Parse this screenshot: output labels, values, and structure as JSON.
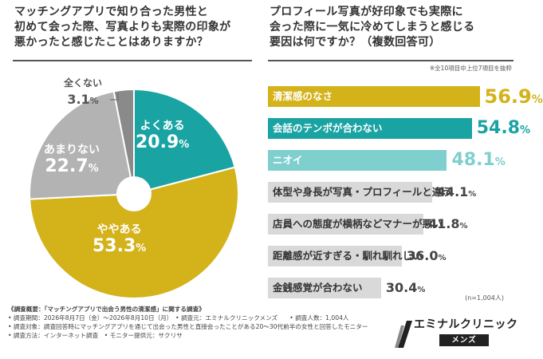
{
  "left": {
    "question_lines": [
      "マッチングアプリで知り合った男性と",
      "初めて会った際、写真よりも実際の印象が",
      "悪かったと感じたことはありますか？"
    ]
  },
  "right": {
    "question_lines": [
      "プロフィール写真が好印象でも実際に",
      "会った際に一気に冷めてしまうと感じる",
      "要因は何ですか？"
    ],
    "multi_answer": "（複数回答可）",
    "note": "※全10項目中上位7項目を抜粋",
    "n_label": "(n=1,004人)"
  },
  "chart_data": [
    {
      "type": "pie",
      "title": "",
      "unit": "%",
      "slices": [
        {
          "label": "よくある",
          "value": 20.9,
          "color": "#1aa3a3"
        },
        {
          "label": "ややある",
          "value": 53.3,
          "color": "#d4b21a"
        },
        {
          "label": "あまりない",
          "value": 22.7,
          "color": "#b3b3b3"
        },
        {
          "label": "全くない",
          "value": 3.1,
          "color": "#8a8a8a"
        }
      ]
    },
    {
      "type": "bar",
      "orientation": "horizontal",
      "title": "",
      "unit": "%",
      "categories": [
        "清潔感のなさ",
        "会話のテンポが合わない",
        "ニオイ",
        "体型や身長が写真・プロフィールと違う",
        "店員への態度が横柄などマナーが悪い",
        "距離感が近すぎる・馴れ馴れしい",
        "金銭感覚が合わない"
      ],
      "values": [
        56.9,
        54.8,
        48.1,
        44.1,
        41.8,
        36.0,
        30.4
      ],
      "display_values": [
        "56.9",
        "54.8",
        "48.1",
        "44.1",
        "41.8",
        "36.0",
        "30.4"
      ],
      "colors": [
        "#d4b21a",
        "#1aa3a3",
        "#7fcfcf",
        "#d9d9d9",
        "#d9d9d9",
        "#d9d9d9",
        "#d9d9d9"
      ],
      "label_colors": [
        "#ffffff",
        "#ffffff",
        "#ffffff",
        "#333333",
        "#333333",
        "#333333",
        "#333333"
      ],
      "value_colors": [
        "#d4b21a",
        "#1aa3a3",
        "#7fcfcf",
        "#444444",
        "#444444",
        "#444444",
        "#444444"
      ],
      "xlim": [
        0,
        60
      ]
    }
  ],
  "footer": {
    "title": "《調査概要：「マッチングアプリで出会う男性の清潔感」に関する調査》",
    "lines": [
      "• 調査期間：2026年8月7日（金）〜2026年8月10日（月）　• 調査元：エミナルクリニックメンズ　　• 調査人数：1,004人",
      "• 調査対象：調査回答時にマッチングアプリを通じて出会った男性と直接会ったことがある20〜30代前半の女性と回答したモニター",
      "• 調査方法：インターネット調査　• モニター提供元：サクリサ"
    ]
  },
  "logo": {
    "name": "エミナルクリニック",
    "sub": "メンズ"
  }
}
